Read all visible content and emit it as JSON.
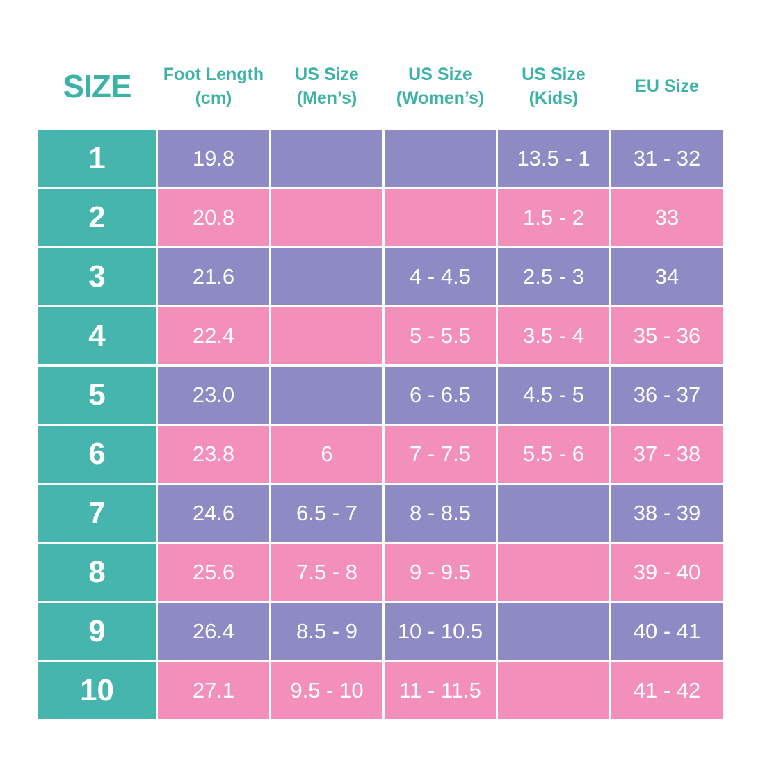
{
  "table": {
    "header": [
      [
        "SIZE"
      ],
      [
        "Foot Length",
        "(cm)"
      ],
      [
        "US Size",
        "(Men’s)"
      ],
      [
        "US Size",
        "(Women’s)"
      ],
      [
        "US Size",
        "(Kids)"
      ],
      [
        "EU Size"
      ]
    ],
    "rows": [
      [
        "1",
        "19.8",
        null,
        null,
        "13.5 - 1",
        "31 - 32"
      ],
      [
        "2",
        "20.8",
        null,
        null,
        "1.5 - 2",
        "33"
      ],
      [
        "3",
        "21.6",
        null,
        "4 - 4.5",
        "2.5 - 3",
        "34"
      ],
      [
        "4",
        "22.4",
        null,
        "5 - 5.5",
        "3.5 - 4",
        "35 - 36"
      ],
      [
        "5",
        "23.0",
        null,
        "6 - 6.5",
        "4.5 - 5",
        "36 - 37"
      ],
      [
        "6",
        "23.8",
        "6",
        "7 - 7.5",
        "5.5 - 6",
        "37 - 38"
      ],
      [
        "7",
        "24.6",
        "6.5 - 7",
        "8 - 8.5",
        null,
        "38 - 39"
      ],
      [
        "8",
        "25.6",
        "7.5 - 8",
        "9 - 9.5",
        null,
        "39 - 40"
      ],
      [
        "9",
        "26.4",
        "8.5 - 9",
        "10 - 10.5",
        null,
        "40 - 41"
      ],
      [
        "10",
        "27.1",
        "9.5 - 10",
        "11 - 11.5",
        null,
        "41 - 42"
      ]
    ]
  }
}
